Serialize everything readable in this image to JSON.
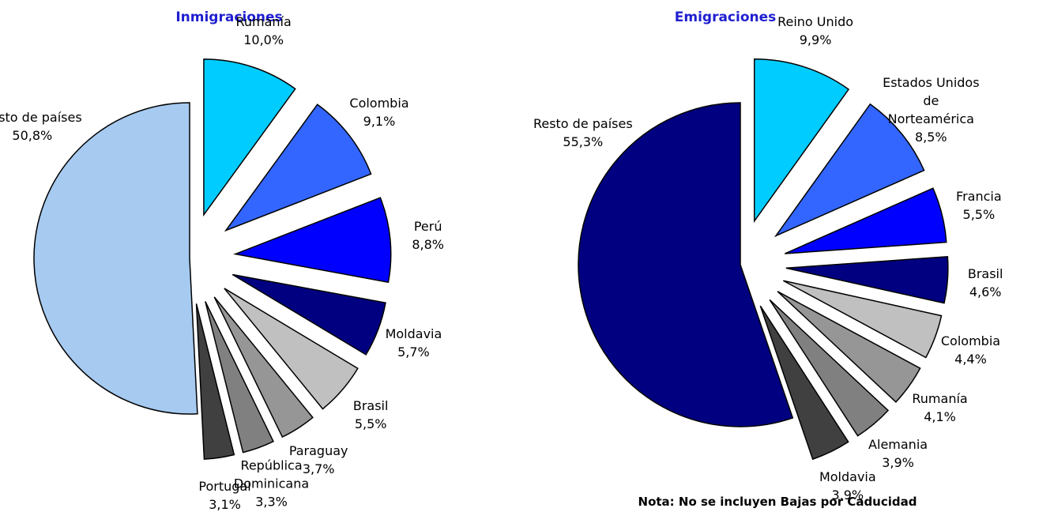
{
  "chart_data": [
    {
      "type": "pie",
      "title": "Inmigraciones",
      "categories": [
        "Rumanía",
        "Colombia",
        "Perú",
        "Moldavia",
        "Brasil",
        "Paraguay",
        "República Dominicana",
        "Portugal",
        "Resto de países"
      ],
      "values": [
        10.0,
        9.1,
        8.8,
        5.7,
        5.5,
        3.7,
        3.3,
        3.1,
        50.8
      ],
      "value_labels": [
        "10,0%",
        "9,1%",
        "8,8%",
        "5,7%",
        "5,5%",
        "3,7%",
        "3,3%",
        "3,1%",
        "50,8%"
      ],
      "colors": [
        "#00ccff",
        "#3366ff",
        "#0000ff",
        "#000080",
        "#c0c0c0",
        "#969696",
        "#808080",
        "#404040",
        "#a6caf0"
      ]
    },
    {
      "type": "pie",
      "title": "Emigraciones",
      "categories": [
        "Reino Unido",
        "Estados Unidos de Norteamérica",
        "Francia",
        "Brasil",
        "Colombia",
        "Rumanía",
        "Alemania",
        "Moldavia",
        "Resto de países"
      ],
      "values": [
        9.9,
        8.5,
        5.5,
        4.6,
        4.4,
        4.1,
        3.9,
        3.9,
        55.3
      ],
      "value_labels": [
        "9,9%",
        "8,5%",
        "5,5%",
        "4,6%",
        "4,4%",
        "4,1%",
        "3,9%",
        "3,9%",
        "55,3%"
      ],
      "colors": [
        "#00ccff",
        "#3366ff",
        "#0000ff",
        "#000080",
        "#c0c0c0",
        "#969696",
        "#808080",
        "#404040",
        "#000080"
      ],
      "note": "Nota: No se incluyen Bajas por Caducidad"
    }
  ]
}
